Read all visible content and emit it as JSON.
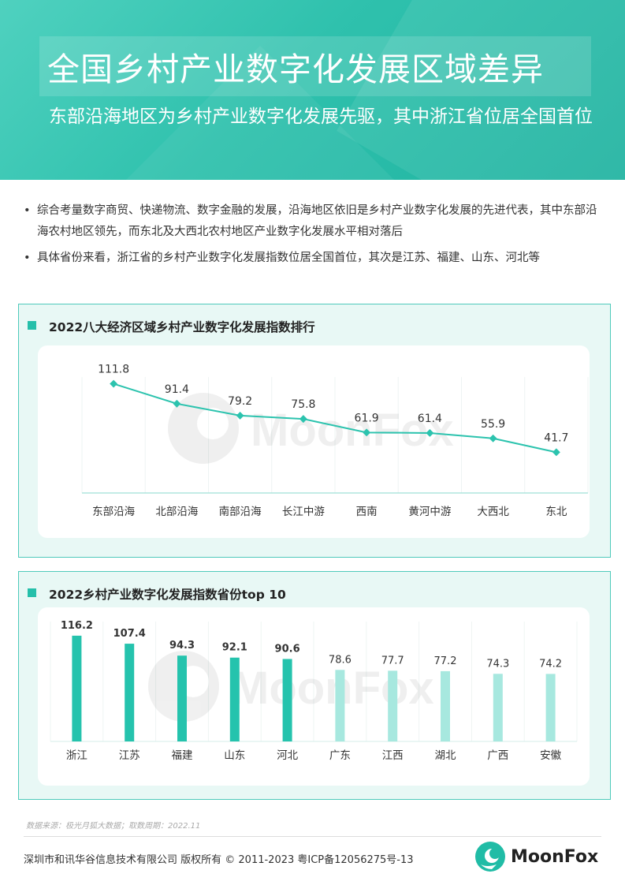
{
  "header": {
    "title": "全国乡村产业数字化发展区域差异",
    "subtitle": "东部沿海地区为乡村产业数字化发展先驱，其中浙江省位居全国首位"
  },
  "bullets": [
    "综合考量数字商贸、快递物流、数字金融的发展，沿海地区依旧是乡村产业数字化发展的先进代表，其中东部沿海农村地区领先，而东北及大西北农村地区产业数字化发展水平相对落后",
    "具体省份来看，浙江省的乡村产业数字化发展指数位居全国首位，其次是江苏、福建、山东、河北等"
  ],
  "bullet_symbol": "•",
  "chart_data": [
    {
      "type": "line",
      "title": "2022八大经济区域乡村产业数字化发展指数排行",
      "categories": [
        "东部沿海",
        "北部沿海",
        "南部沿海",
        "长江中游",
        "西南",
        "黄河中游",
        "大西北",
        "东北"
      ],
      "values": [
        111.8,
        91.4,
        79.2,
        75.8,
        61.9,
        61.4,
        55.9,
        41.7
      ],
      "labels": [
        "111.8",
        "91.4",
        "79.2",
        "75.8",
        "61.9",
        "61.4",
        "55.9",
        "41.7"
      ],
      "ylim": [
        0,
        130
      ],
      "xlabel": "",
      "ylabel": "",
      "grid": false,
      "color": "#2cc3ae"
    },
    {
      "type": "bar",
      "title": "2022乡村产业数字化发展指数省份top 10",
      "categories": [
        "浙江",
        "江苏",
        "福建",
        "山东",
        "河北",
        "广东",
        "江西",
        "湖北",
        "广西",
        "安徽"
      ],
      "values": [
        116.2,
        107.4,
        94.3,
        92.1,
        90.6,
        78.6,
        77.7,
        77.2,
        74.3,
        74.2
      ],
      "labels": [
        "116.2",
        "107.4",
        "94.3",
        "92.1",
        "90.6",
        "78.6",
        "77.7",
        "77.2",
        "74.3",
        "74.2"
      ],
      "ylim": [
        0,
        130
      ],
      "xlabel": "",
      "ylabel": "",
      "grid": false,
      "highlight_count": 5,
      "colors": {
        "highlight": "#25c3ad",
        "normal": "#a7e8df"
      }
    }
  ],
  "watermark": "MoonFox",
  "footer": {
    "source": "数据来源：极光月狐大数据；取数周期：2022.11",
    "copyright": "深圳市和讯华谷信息技术有限公司 版权所有 © 2011-2023 粤ICP备12056275号-13",
    "brand": "MoonFox"
  }
}
